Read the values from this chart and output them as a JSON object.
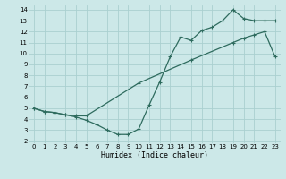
{
  "xlabel": "Humidex (Indice chaleur)",
  "ylabel": "",
  "bg_color": "#cce8e8",
  "grid_color": "#aad0d0",
  "line_color": "#2e6b5e",
  "xlim": [
    -0.5,
    23.5
  ],
  "ylim": [
    1.8,
    14.4
  ],
  "xticks": [
    0,
    1,
    2,
    3,
    4,
    5,
    6,
    7,
    8,
    9,
    10,
    11,
    12,
    13,
    14,
    15,
    16,
    17,
    18,
    19,
    20,
    21,
    22,
    23
  ],
  "yticks": [
    2,
    3,
    4,
    5,
    6,
    7,
    8,
    9,
    10,
    11,
    12,
    13,
    14
  ],
  "line1_x": [
    0,
    1,
    2,
    3,
    4,
    5,
    10,
    15,
    19,
    20,
    21,
    22,
    23
  ],
  "line1_y": [
    5.0,
    4.7,
    4.6,
    4.4,
    4.3,
    4.3,
    7.3,
    9.4,
    11.0,
    11.4,
    11.7,
    12.0,
    9.7
  ],
  "line2_x": [
    0,
    1,
    2,
    3,
    4,
    5,
    6,
    7,
    8,
    9,
    10,
    11,
    12,
    13,
    14,
    15,
    16,
    17,
    18,
    19,
    20,
    21,
    22,
    23
  ],
  "line2_y": [
    5.0,
    4.7,
    4.6,
    4.4,
    4.2,
    3.9,
    3.5,
    3.0,
    2.6,
    2.6,
    3.1,
    5.3,
    7.4,
    9.7,
    11.5,
    11.2,
    12.1,
    12.4,
    13.0,
    14.0,
    13.2,
    13.0,
    13.0,
    13.0
  ],
  "marker": "+",
  "markersize": 3,
  "linewidth": 0.9,
  "tick_fontsize": 5,
  "xlabel_fontsize": 6
}
